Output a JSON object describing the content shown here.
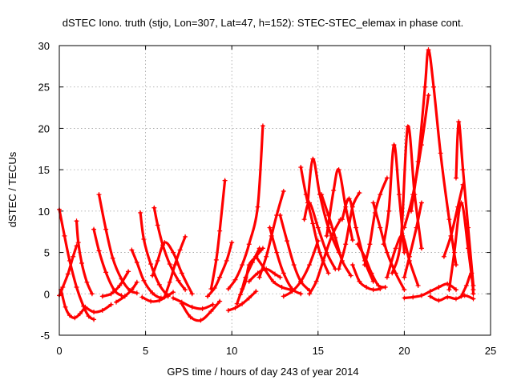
{
  "chart_data": {
    "type": "scatter",
    "title": "dSTEC Iono. truth (stjo, Lon=307, Lat=47, h=152): STEC-STEC_elemax in phase cont.",
    "xlabel": "GPS time / hours of day 243 of year 2014",
    "ylabel": "dSTEC  / TECUs",
    "xlim": [
      0,
      25
    ],
    "ylim": [
      -5,
      30
    ],
    "xticks": [
      "0",
      "5",
      "10",
      "15",
      "20",
      "25"
    ],
    "yticks": [
      "-5",
      "0",
      "5",
      "10",
      "15",
      "20",
      "25",
      "30"
    ],
    "grid": true,
    "marker": "+",
    "color": "#ff0000",
    "series": [
      {
        "x": [
          0,
          0.3,
          0.6,
          1.0,
          1.4,
          1.7,
          2.0
        ],
        "y": [
          10.2,
          7.0,
          4.0,
          0.8,
          -1.5,
          -2.7,
          -3.1
        ]
      },
      {
        "x": [
          0.1,
          0.35,
          0.6,
          0.9,
          1.2,
          1.5
        ],
        "y": [
          0.5,
          -1.6,
          -2.6,
          -2.9,
          -2.4,
          -1.6
        ]
      },
      {
        "x": [
          0,
          0.2,
          0.5,
          0.8,
          1.0
        ],
        "y": [
          -0.2,
          0.8,
          2.4,
          4.5,
          5.8
        ]
      },
      {
        "x": [
          1.0,
          1.1,
          1.3,
          1.6,
          1.9
        ],
        "y": [
          8.8,
          6.2,
          3.7,
          1.4,
          0.0
        ]
      },
      {
        "x": [
          1.5,
          2.0,
          2.5,
          3.0
        ],
        "y": [
          -1.6,
          -2.2,
          -2.0,
          -1.3
        ]
      },
      {
        "x": [
          2.0,
          2.3,
          2.7,
          3.2,
          3.6
        ],
        "y": [
          7.8,
          5.2,
          2.6,
          0.4,
          -0.2
        ]
      },
      {
        "x": [
          2.3,
          2.7,
          3.1,
          3.6,
          4.1,
          4.5
        ],
        "y": [
          12.0,
          7.8,
          4.3,
          1.8,
          0.4,
          0.1
        ]
      },
      {
        "x": [
          2.5,
          3.0,
          3.5,
          4.0
        ],
        "y": [
          -0.3,
          0.0,
          1.0,
          2.7
        ]
      },
      {
        "x": [
          3.3,
          3.8,
          4.2,
          4.5
        ],
        "y": [
          -1.0,
          -0.3,
          0.5,
          1.4
        ]
      },
      {
        "x": [
          4.2,
          4.5,
          4.9,
          5.4,
          5.9,
          6.3
        ],
        "y": [
          5.3,
          3.8,
          1.6,
          0.1,
          -0.5,
          -0.2
        ]
      },
      {
        "x": [
          4.7,
          4.9,
          5.3,
          5.8,
          6.3
        ],
        "y": [
          9.8,
          6.6,
          3.6,
          1.1,
          -0.3
        ]
      },
      {
        "x": [
          4.8,
          5.3,
          5.8,
          6.3,
          6.6
        ],
        "y": [
          -0.4,
          -0.9,
          -0.8,
          -0.2,
          0.2
        ]
      },
      {
        "x": [
          5.4,
          5.7,
          6.1,
          6.6,
          7.1,
          7.7
        ],
        "y": [
          2.2,
          4.0,
          6.2,
          5.0,
          2.5,
          0.0
        ]
      },
      {
        "x": [
          5.5,
          5.7,
          6.0,
          6.4,
          6.9,
          7.3
        ],
        "y": [
          10.4,
          8.3,
          5.9,
          3.6,
          1.6,
          0.5
        ]
      },
      {
        "x": [
          6.1,
          6.4,
          6.7,
          7.0,
          7.3
        ],
        "y": [
          -0.4,
          1.4,
          3.5,
          5.3,
          6.9
        ]
      },
      {
        "x": [
          6.6,
          7.1,
          7.7,
          8.3,
          8.9
        ],
        "y": [
          -0.5,
          -1.0,
          -1.6,
          -1.8,
          -1.3
        ]
      },
      {
        "x": [
          7.1,
          7.6,
          8.2,
          8.8,
          9.3
        ],
        "y": [
          -1.2,
          -2.8,
          -3.2,
          -2.1,
          -0.9
        ]
      },
      {
        "x": [
          8.6,
          9.0,
          9.3,
          9.7,
          10.0
        ],
        "y": [
          -0.3,
          0.7,
          2.0,
          4.0,
          6.2
        ]
      },
      {
        "x": [
          8.8,
          9.1,
          9.3,
          9.6
        ],
        "y": [
          0.6,
          4.1,
          7.6,
          13.7
        ]
      },
      {
        "x": [
          9.8,
          10.2,
          10.6,
          11.0,
          11.4
        ],
        "y": [
          -2.0,
          -1.7,
          -1.2,
          -0.5,
          0.3
        ]
      },
      {
        "x": [
          9.8,
          10.2,
          10.6,
          11.0,
          11.5,
          11.8
        ],
        "y": [
          0.6,
          1.7,
          3.5,
          6.0,
          10.5,
          20.3
        ]
      },
      {
        "x": [
          10.3,
          10.6,
          10.8,
          11.2,
          11.6
        ],
        "y": [
          -1.2,
          0.6,
          2.0,
          3.8,
          5.5
        ]
      },
      {
        "x": [
          10.5,
          10.8,
          11.0,
          11.4,
          11.8
        ],
        "y": [
          -0.1,
          1.5,
          3.5,
          4.5,
          5.5
        ]
      },
      {
        "x": [
          11.0,
          11.5,
          12.0,
          12.5,
          12.8
        ],
        "y": [
          1.5,
          2.5,
          3.0,
          2.4,
          2.0
        ]
      },
      {
        "x": [
          11.4,
          11.9,
          12.4,
          12.9,
          13.4
        ],
        "y": [
          4.5,
          3.0,
          1.5,
          0.8,
          0.5
        ]
      },
      {
        "x": [
          11.6,
          12.0,
          12.3,
          12.6,
          13.0
        ],
        "y": [
          2.0,
          4.5,
          7.0,
          9.5,
          12.4
        ]
      },
      {
        "x": [
          12.2,
          12.6,
          13.0,
          13.5,
          14.0
        ],
        "y": [
          8.0,
          5.0,
          2.5,
          0.6,
          0.0
        ]
      },
      {
        "x": [
          12.8,
          13.2,
          13.6,
          14.0,
          14.5
        ],
        "y": [
          9.5,
          6.4,
          3.5,
          1.5,
          0.4
        ]
      },
      {
        "x": [
          13.0,
          13.5,
          14.0,
          14.5,
          15.0
        ],
        "y": [
          -0.3,
          0.3,
          1.5,
          3.5,
          6.4
        ]
      },
      {
        "x": [
          14.0,
          14.3,
          14.7,
          15.1,
          15.6
        ],
        "y": [
          15.3,
          12.0,
          8.5,
          5.0,
          2.5
        ]
      },
      {
        "x": [
          14.2,
          14.5,
          15.0,
          15.5,
          16.0
        ],
        "y": [
          9.0,
          11.0,
          8.0,
          5.0,
          3.0
        ]
      },
      {
        "x": [
          14.4,
          14.7,
          15.1,
          15.6,
          16.2
        ],
        "y": [
          11.0,
          16.3,
          12.0,
          8.0,
          5.0
        ]
      },
      {
        "x": [
          14.5,
          14.9,
          15.3,
          15.8,
          16.3
        ],
        "y": [
          0.0,
          1.5,
          4.0,
          7.0,
          9.0
        ]
      },
      {
        "x": [
          15.2,
          15.6,
          16.0,
          16.4,
          16.9
        ],
        "y": [
          12.0,
          9.5,
          6.8,
          4.0,
          2.2
        ]
      },
      {
        "x": [
          15.5,
          15.9,
          16.2,
          16.6,
          17.0
        ],
        "y": [
          7.0,
          12.5,
          15.0,
          10.5,
          6.5
        ]
      },
      {
        "x": [
          16.2,
          16.6,
          17.0,
          17.4
        ],
        "y": [
          3.0,
          6.0,
          10.5,
          12.2
        ]
      },
      {
        "x": [
          16.4,
          16.8,
          17.2,
          17.7,
          18.2
        ],
        "y": [
          9.0,
          11.5,
          8.0,
          4.0,
          1.5
        ]
      },
      {
        "x": [
          17.0,
          17.4,
          17.8,
          18.2,
          18.6
        ],
        "y": [
          3.5,
          1.5,
          0.8,
          0.5,
          0.6
        ]
      },
      {
        "x": [
          17.3,
          17.7,
          18.1,
          18.5,
          18.9
        ],
        "y": [
          6.0,
          4.5,
          2.5,
          1.0,
          0.8
        ]
      },
      {
        "x": [
          17.7,
          18.0,
          18.3,
          18.6,
          19.0
        ],
        "y": [
          3.5,
          6.0,
          9.8,
          12.0,
          14.0
        ]
      },
      {
        "x": [
          18.2,
          18.6,
          19.0,
          19.5,
          20.0
        ],
        "y": [
          11.0,
          8.0,
          5.0,
          2.5,
          0.5
        ]
      },
      {
        "x": [
          18.8,
          19.1,
          19.4,
          19.7,
          20.0
        ],
        "y": [
          6.0,
          10.0,
          18.0,
          12.0,
          5.0
        ]
      },
      {
        "x": [
          19.0,
          19.5,
          19.9,
          20.3,
          20.8
        ],
        "y": [
          2.0,
          5.5,
          7.0,
          4.0,
          1.0
        ]
      },
      {
        "x": [
          19.3,
          19.8,
          20.2,
          20.6,
          21.0
        ],
        "y": [
          2.5,
          6.5,
          20.2,
          12.0,
          5.5
        ]
      },
      {
        "x": [
          20.0,
          20.3,
          20.7,
          21.0
        ],
        "y": [
          2.0,
          4.5,
          8.0,
          11.0
        ]
      },
      {
        "x": [
          20.0,
          20.5,
          21.0,
          21.4
        ],
        "y": [
          8.0,
          12.0,
          18.0,
          24.0
        ]
      },
      {
        "x": [
          20.4,
          20.8,
          21.2,
          21.4,
          21.7,
          22.1,
          22.6,
          23.0
        ],
        "y": [
          10.0,
          16.0,
          25.0,
          29.5,
          25.0,
          17.0,
          9.0,
          3.5
        ]
      },
      {
        "x": [
          20.0,
          20.5,
          21.0,
          21.5,
          22.0,
          22.5,
          23.0
        ],
        "y": [
          -0.5,
          -0.4,
          -0.2,
          0.3,
          0.8,
          1.2,
          0.5
        ]
      },
      {
        "x": [
          21.5,
          22.0,
          22.5,
          23.0,
          23.5,
          24.0
        ],
        "y": [
          -0.3,
          -0.8,
          -0.4,
          -0.6,
          -0.2,
          -0.6
        ]
      },
      {
        "x": [
          22.3,
          22.7,
          23.1,
          23.4
        ],
        "y": [
          4.5,
          7.0,
          10.5,
          13.2
        ]
      },
      {
        "x": [
          22.6,
          22.9,
          23.3,
          23.7,
          24.0
        ],
        "y": [
          0.5,
          5.0,
          11.0,
          5.5,
          0.5
        ]
      },
      {
        "x": [
          23.0,
          23.15,
          23.4,
          23.7,
          24.0
        ],
        "y": [
          14.0,
          20.8,
          15.0,
          8.0,
          1.0
        ]
      },
      {
        "x": [
          23.3,
          23.6,
          23.9,
          24.0
        ],
        "y": [
          -0.3,
          1.0,
          2.5,
          0.0
        ]
      }
    ]
  }
}
